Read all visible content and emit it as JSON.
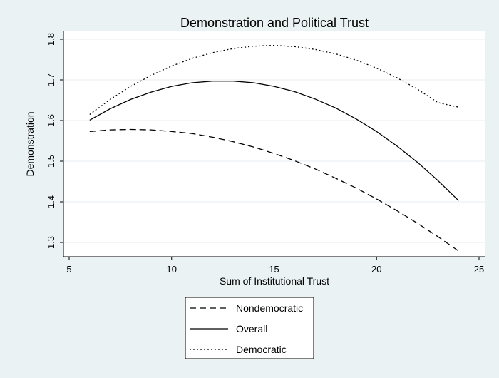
{
  "chart_data": {
    "type": "line",
    "title": "Demonstration and Political Trust",
    "xlabel": "Sum of Institutional Trust",
    "ylabel": "Demonstration",
    "xlim": [
      5,
      25
    ],
    "ylim": [
      1.27,
      1.82
    ],
    "xticks": [
      5,
      10,
      15,
      20,
      25
    ],
    "yticks": [
      1.3,
      1.4,
      1.5,
      1.6,
      1.7,
      1.8
    ],
    "xtick_labels": [
      "5",
      "10",
      "15",
      "20",
      "25"
    ],
    "ytick_labels": [
      "1.3",
      "1.4",
      "1.5",
      "1.6",
      "1.7",
      "1.8"
    ],
    "grid": true,
    "legend_position": "bottom",
    "series": [
      {
        "name": "Nondemocratic",
        "style": "dashed",
        "x": [
          6,
          7,
          8,
          9,
          10,
          11,
          12,
          13,
          14,
          15,
          16,
          17,
          18,
          19,
          20,
          21,
          22,
          23,
          24
        ],
        "y": [
          1.573,
          1.577,
          1.578,
          1.577,
          1.573,
          1.568,
          1.559,
          1.548,
          1.535,
          1.519,
          1.501,
          1.481,
          1.458,
          1.434,
          1.407,
          1.378,
          1.347,
          1.314,
          1.279
        ]
      },
      {
        "name": "Overall",
        "style": "solid",
        "x": [
          6,
          7,
          8,
          9,
          10,
          11,
          12,
          13,
          14,
          15,
          16,
          17,
          18,
          19,
          20,
          21,
          22,
          23,
          24
        ],
        "y": [
          1.601,
          1.629,
          1.652,
          1.67,
          1.684,
          1.693,
          1.697,
          1.697,
          1.693,
          1.684,
          1.671,
          1.653,
          1.631,
          1.604,
          1.573,
          1.537,
          1.497,
          1.452,
          1.403
        ]
      },
      {
        "name": "Democratic",
        "style": "dotted",
        "x": [
          6,
          7,
          8,
          9,
          10,
          11,
          12,
          13,
          14,
          15,
          16,
          17,
          18,
          19,
          20,
          21,
          22,
          23,
          24
        ],
        "y": [
          1.615,
          1.652,
          1.684,
          1.711,
          1.734,
          1.753,
          1.767,
          1.777,
          1.783,
          1.785,
          1.782,
          1.775,
          1.764,
          1.749,
          1.729,
          1.705,
          1.677,
          1.644,
          1.633
        ]
      }
    ]
  }
}
